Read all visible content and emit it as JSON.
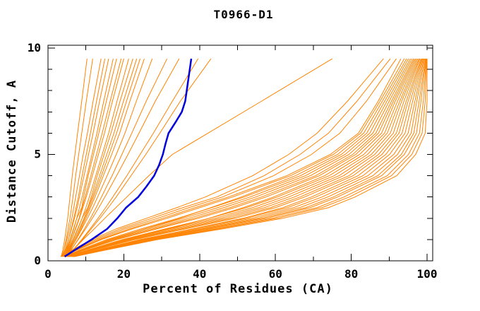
{
  "chart_data": {
    "type": "line",
    "title": "T0966-D1",
    "xlabel": "Percent of Residues (CA)",
    "ylabel": "Distance Cutoff, A",
    "xlim": [
      0,
      100
    ],
    "ylim": [
      0,
      10
    ],
    "x_ticks": [
      0,
      20,
      40,
      60,
      80,
      100
    ],
    "x_minor_step": 10,
    "y_ticks": [
      0,
      5,
      10
    ],
    "y_minor_step": 1,
    "grid": false,
    "legend": "none",
    "colors": {
      "models": "#ff8300",
      "highlight": "#0000dd",
      "axis": "#000000",
      "background": "#ffffff"
    },
    "cutoffs": [
      0.2,
      0.5,
      1,
      1.5,
      2,
      2.5,
      3,
      4,
      5,
      6,
      7.5,
      9.5
    ],
    "highlight_series": {
      "points": [
        [
          0.2,
          4.4
        ],
        [
          0.5,
          7.0
        ],
        [
          1,
          11.5
        ],
        [
          1.5,
          15.6
        ],
        [
          2,
          18.3
        ],
        [
          2.5,
          20.6
        ],
        [
          3,
          23.8
        ],
        [
          3.5,
          26.0
        ],
        [
          4,
          28.0
        ],
        [
          4.5,
          29.3
        ],
        [
          5,
          30.3
        ],
        [
          5.5,
          31.0
        ],
        [
          6,
          31.8
        ],
        [
          6.5,
          33.6
        ],
        [
          7,
          35.3
        ],
        [
          7.5,
          36.2
        ],
        [
          8,
          36.6
        ],
        [
          8.5,
          37.0
        ],
        [
          9,
          37.4
        ],
        [
          9.5,
          37.8
        ]
      ]
    },
    "model_series": [
      {
        "percents": [
          3.5,
          3.9,
          4.4,
          4.8,
          5.2,
          5.5,
          5.8,
          6.4,
          7.1,
          7.8,
          8.9,
          10.3
        ]
      },
      {
        "percents": [
          3.7,
          4.2,
          4.8,
          5.3,
          5.8,
          6.2,
          6.6,
          7.3,
          8.1,
          8.9,
          10.1,
          11.8
        ]
      },
      {
        "percents": [
          3.6,
          4.2,
          5.0,
          5.7,
          6.3,
          6.8,
          7.3,
          8.3,
          9.3,
          10.4,
          11.9,
          14.0
        ]
      },
      {
        "percents": [
          4.0,
          4.6,
          5.4,
          6.1,
          6.8,
          7.4,
          8.0,
          9.0,
          10.1,
          11.2,
          12.8,
          15.0
        ]
      },
      {
        "percents": [
          3.8,
          4.5,
          5.4,
          6.2,
          7.0,
          7.7,
          8.3,
          9.5,
          10.7,
          11.9,
          13.6,
          16.0
        ]
      },
      {
        "percents": [
          4.2,
          4.9,
          5.9,
          6.8,
          7.6,
          8.3,
          9.0,
          10.3,
          11.6,
          12.9,
          14.7,
          17.2
        ]
      },
      {
        "percents": [
          3.9,
          4.7,
          5.8,
          6.7,
          7.6,
          8.9,
          9.4,
          10.6,
          12.0,
          13.4,
          15.4,
          18.1
        ]
      },
      {
        "percents": [
          4.3,
          5.1,
          6.2,
          7.2,
          8.2,
          9.0,
          9.8,
          11.3,
          12.8,
          14.3,
          16.4,
          19.3
        ]
      },
      {
        "percents": [
          4.1,
          5.0,
          6.2,
          7.3,
          8.3,
          9.2,
          10.1,
          11.7,
          13.3,
          14.9,
          17.0,
          20.0
        ]
      },
      {
        "percents": [
          4.5,
          5.4,
          6.7,
          7.9,
          9.0,
          10.0,
          10.9,
          12.6,
          14.3,
          16.0,
          18.2,
          21.3
        ]
      },
      {
        "percents": [
          4.2,
          5.2,
          6.6,
          7.8,
          9.0,
          10.5,
          11.4,
          13.0,
          14.8,
          16.6,
          19.0,
          22.4
        ]
      },
      {
        "percents": [
          4.6,
          5.6,
          7.0,
          8.3,
          9.5,
          10.6,
          11.7,
          13.6,
          15.5,
          17.4,
          19.9,
          23.4
        ]
      },
      {
        "percents": [
          4.4,
          5.5,
          7.0,
          8.4,
          9.7,
          10.9,
          12.0,
          14.1,
          16.1,
          18.1,
          20.7,
          24.3
        ]
      },
      {
        "percents": [
          4.7,
          5.8,
          7.3,
          8.7,
          10.0,
          11.2,
          12.4,
          14.6,
          16.8,
          18.9,
          21.6,
          25.4
        ]
      },
      {
        "percents": [
          4.5,
          5.7,
          7.4,
          8.9,
          10.4,
          11.8,
          13.1,
          15.6,
          18.0,
          20.3,
          23.3,
          27.5
        ]
      },
      {
        "percents": [
          4.8,
          6.1,
          7.9,
          9.6,
          11.2,
          12.7,
          14.1,
          16.9,
          19.5,
          22.1,
          25.9,
          31.4
        ]
      },
      {
        "percents": [
          4.6,
          6.0,
          8.0,
          9.9,
          11.7,
          13.4,
          15.0,
          18.1,
          21.1,
          24.0,
          28.3,
          34.6
        ]
      },
      {
        "percents": [
          5.0,
          6.6,
          8.9,
          11.1,
          13.2,
          15.2,
          17.1,
          20.8,
          24.3,
          27.8,
          32.8,
          39.6
        ]
      },
      {
        "percents": [
          4.9,
          6.6,
          9.1,
          11.4,
          13.7,
          15.9,
          18.0,
          21.9,
          25.8,
          29.5,
          34.9,
          43.0
        ]
      },
      {
        "percents": [
          5.0,
          6.5,
          9.3,
          12.2,
          15.0,
          17.9,
          20.8,
          26.6,
          32.8,
          42.2,
          56.3,
          75.0
        ]
      },
      {
        "percents": [
          7.0,
          15.0,
          29.0,
          46.0,
          62.0,
          74.0,
          81.0,
          92.0,
          97.0,
          99.5,
          100,
          100
        ]
      },
      {
        "percents": [
          6.9,
          14.6,
          28.2,
          44.8,
          60.5,
          72.3,
          79.5,
          90.6,
          96.0,
          98.7,
          99.5,
          99.9
        ]
      },
      {
        "percents": [
          6.7,
          14.3,
          27.7,
          44.0,
          59.2,
          71.0,
          78.1,
          89.5,
          95.1,
          98.0,
          99.0,
          99.8
        ]
      },
      {
        "percents": [
          6.6,
          14.0,
          27.0,
          42.7,
          57.7,
          69.2,
          76.4,
          88.0,
          94.0,
          97.2,
          98.4,
          99.7
        ]
      },
      {
        "percents": [
          6.4,
          13.6,
          26.3,
          41.7,
          56.5,
          68.0,
          75.3,
          87.0,
          93.2,
          96.5,
          97.9,
          99.6
        ]
      },
      {
        "percents": [
          6.3,
          13.3,
          25.7,
          40.7,
          55.2,
          66.4,
          73.8,
          85.7,
          92.2,
          95.8,
          97.3,
          99.4
        ]
      },
      {
        "percents": [
          6.1,
          13.0,
          25.0,
          39.6,
          53.7,
          64.8,
          72.3,
          84.4,
          91.2,
          95.0,
          96.8,
          99.2
        ]
      },
      {
        "percents": [
          6.0,
          12.7,
          24.3,
          38.4,
          52.3,
          63.2,
          70.7,
          83.1,
          90.1,
          94.2,
          96.2,
          99.0
        ]
      },
      {
        "percents": [
          6.6,
          13.5,
          24.8,
          38.0,
          51.5,
          62.0,
          69.5,
          81.8,
          89.1,
          93.4,
          95.6,
          98.8
        ]
      },
      {
        "percents": [
          5.7,
          12.0,
          23.0,
          36.2,
          49.4,
          60.0,
          67.7,
          80.5,
          88.1,
          92.6,
          95.0,
          98.6
        ]
      },
      {
        "percents": [
          5.6,
          11.7,
          22.3,
          35.3,
          48.2,
          58.7,
          66.5,
          79.4,
          87.2,
          91.9,
          94.5,
          98.4
        ]
      },
      {
        "percents": [
          5.4,
          11.3,
          21.6,
          34.2,
          46.8,
          57.1,
          65.0,
          78.0,
          86.2,
          91.1,
          93.9,
          98.1
        ]
      },
      {
        "percents": [
          5.3,
          11.0,
          21.0,
          33.1,
          45.4,
          55.6,
          63.5,
          76.8,
          85.3,
          90.3,
          93.3,
          97.9
        ]
      },
      {
        "percents": [
          5.2,
          10.7,
          20.3,
          32.0,
          44.0,
          54.0,
          62.0,
          75.5,
          84.3,
          89.5,
          92.8,
          97.6
        ]
      },
      {
        "percents": [
          5.0,
          10.3,
          19.6,
          30.9,
          42.6,
          52.4,
          60.5,
          74.2,
          83.3,
          88.8,
          92.2,
          97.3
        ]
      },
      {
        "percents": [
          5.6,
          11.2,
          20.5,
          31.5,
          42.5,
          51.5,
          59.5,
          73.0,
          82.2,
          88.0,
          91.6,
          97.0
        ]
      },
      {
        "percents": [
          4.7,
          9.6,
          18.2,
          28.7,
          39.7,
          49.2,
          57.5,
          71.6,
          81.2,
          87.2,
          91.1,
          96.7
        ]
      },
      {
        "percents": [
          4.6,
          9.3,
          17.6,
          27.8,
          38.6,
          48.0,
          56.3,
          70.6,
          80.4,
          86.5,
          90.6,
          96.4
        ]
      },
      {
        "percents": [
          4.4,
          9.0,
          16.9,
          26.7,
          37.2,
          46.4,
          54.8,
          69.2,
          79.4,
          85.7,
          90.0,
          96.0
        ]
      },
      {
        "percents": [
          4.3,
          8.7,
          16.2,
          25.6,
          35.7,
          44.8,
          53.3,
          67.9,
          78.4,
          84.9,
          89.4,
          95.6
        ]
      },
      {
        "percents": [
          4.2,
          8.3,
          15.5,
          24.5,
          34.3,
          43.2,
          51.8,
          66.6,
          77.4,
          84.1,
          88.8,
          95.1
        ]
      },
      {
        "percents": [
          4.6,
          9.2,
          16.6,
          25.5,
          34.8,
          43.0,
          51.0,
          65.3,
          76.4,
          83.3,
          88.2,
          94.6
        ]
      },
      {
        "percents": [
          3.9,
          7.6,
          14.1,
          22.2,
          31.4,
          40.0,
          48.7,
          64.0,
          75.3,
          82.5,
          87.6,
          94.0
        ]
      },
      {
        "percents": [
          3.7,
          7.3,
          13.6,
          21.4,
          30.3,
          38.8,
          47.6,
          63.0,
          74.5,
          81.9,
          87.1,
          93.1
        ]
      },
      {
        "percents": [
          3.6,
          7.0,
          12.9,
          20.2,
          28.9,
          37.2,
          46.0,
          59.5,
          69.5,
          77.0,
          84.0,
          91.9
        ]
      },
      {
        "percents": [
          3.4,
          6.6,
          12.2,
          19.1,
          27.4,
          35.6,
          44.5,
          57.0,
          66.5,
          74.0,
          81.5,
          90.3
        ]
      },
      {
        "percents": [
          3.3,
          6.3,
          11.5,
          18.0,
          26.0,
          34.0,
          41.5,
          54.0,
          63.5,
          71.0,
          79.0,
          88.5
        ]
      }
    ]
  }
}
